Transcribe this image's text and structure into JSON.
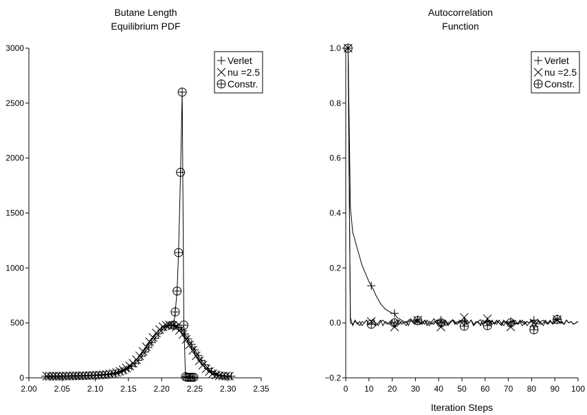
{
  "chart_data": [
    {
      "type": "line",
      "title": "Butane Length\nEquilibrium PDF",
      "xlabel": "",
      "ylabel": "",
      "xlim": [
        2.0,
        2.35
      ],
      "ylim": [
        0,
        3000
      ],
      "xticks": [
        "2.00",
        "2.05",
        "2.10",
        "2.15",
        "2.20",
        "2.25",
        "2.30",
        "2.35"
      ],
      "yticks": [
        "0",
        "500",
        "1000",
        "1500",
        "2000",
        "2500",
        "3000"
      ],
      "legend_position": "top-right",
      "grid": false,
      "legend": [
        {
          "name": "Verlet",
          "marker": "plus"
        },
        {
          "name": "nu =2.5",
          "marker": "cross"
        },
        {
          "name": "Constr.",
          "marker": "circle-plus"
        }
      ],
      "series": [
        {
          "name": "Verlet",
          "marker": "plus",
          "x": [
            2.025,
            2.03,
            2.035,
            2.04,
            2.045,
            2.05,
            2.055,
            2.06,
            2.065,
            2.07,
            2.075,
            2.08,
            2.085,
            2.09,
            2.095,
            2.1,
            2.105,
            2.11,
            2.115,
            2.12,
            2.125,
            2.13,
            2.135,
            2.14,
            2.145,
            2.15,
            2.155,
            2.16,
            2.165,
            2.17,
            2.175,
            2.18,
            2.185,
            2.19,
            2.195,
            2.2,
            2.205,
            2.21,
            2.215,
            2.22,
            2.225,
            2.23,
            2.235,
            2.24,
            2.245,
            2.25,
            2.255,
            2.26,
            2.265,
            2.27,
            2.275,
            2.28,
            2.285,
            2.29,
            2.295,
            2.3,
            2.305
          ],
          "y": [
            15,
            15,
            15,
            15,
            15,
            15,
            16,
            16,
            17,
            17,
            18,
            18,
            19,
            20,
            21,
            22,
            23,
            25,
            27,
            30,
            34,
            40,
            48,
            58,
            70,
            85,
            105,
            130,
            160,
            195,
            235,
            275,
            320,
            360,
            400,
            435,
            460,
            475,
            480,
            475,
            460,
            435,
            400,
            355,
            305,
            255,
            205,
            160,
            120,
            85,
            60,
            40,
            28,
            20,
            16,
            15,
            15
          ]
        },
        {
          "name": "nu =2.5",
          "marker": "cross",
          "x": [
            2.027,
            2.032,
            2.037,
            2.042,
            2.047,
            2.052,
            2.057,
            2.062,
            2.067,
            2.072,
            2.077,
            2.082,
            2.087,
            2.092,
            2.097,
            2.102,
            2.107,
            2.112,
            2.117,
            2.122,
            2.127,
            2.132,
            2.137,
            2.142,
            2.147,
            2.152,
            2.157,
            2.162,
            2.167,
            2.172,
            2.177,
            2.182,
            2.187,
            2.192,
            2.197,
            2.202,
            2.207,
            2.212,
            2.217,
            2.222,
            2.227,
            2.232,
            2.237,
            2.242,
            2.247,
            2.252,
            2.257,
            2.262,
            2.267,
            2.272,
            2.277,
            2.282,
            2.287,
            2.292,
            2.297,
            2.302
          ],
          "y": [
            15,
            15,
            15,
            15,
            15,
            16,
            16,
            16,
            17,
            17,
            18,
            19,
            20,
            21,
            22,
            24,
            26,
            28,
            31,
            35,
            41,
            49,
            60,
            72,
            88,
            108,
            133,
            165,
            200,
            240,
            282,
            328,
            368,
            408,
            440,
            465,
            478,
            482,
            476,
            460,
            432,
            395,
            350,
            300,
            250,
            200,
            155,
            115,
            82,
            58,
            38,
            26,
            19,
            16,
            15,
            15
          ]
        },
        {
          "name": "Constr.",
          "marker": "circle-plus",
          "x": [
            2.218,
            2.2205,
            2.2233,
            2.2255,
            2.2285,
            2.231,
            2.2335,
            2.236,
            2.2385,
            2.241,
            2.2435,
            2.246,
            2.2485
          ],
          "y": [
            480,
            600,
            790,
            1140,
            1870,
            2600,
            480,
            10,
            5,
            5,
            5,
            5,
            5
          ]
        }
      ]
    },
    {
      "type": "line",
      "title": "Autocorrelation\nFunction",
      "xlabel": "Iteration Steps",
      "ylabel": "",
      "xlim": [
        0,
        100
      ],
      "ylim": [
        -0.2,
        1.0
      ],
      "xticks": [
        "0",
        "10",
        "20",
        "30",
        "40",
        "50",
        "60",
        "70",
        "80",
        "90",
        "100"
      ],
      "yticks": [
        "−0.2",
        "0.0",
        "0.2",
        "0.4",
        "0.6",
        "0.8",
        "1.0"
      ],
      "legend_position": "top-right",
      "grid": false,
      "legend": [
        {
          "name": "Verlet",
          "marker": "plus"
        },
        {
          "name": "nu =2.5",
          "marker": "cross"
        },
        {
          "name": "Constr.",
          "marker": "circle-plus"
        }
      ],
      "series": [
        {
          "name": "Verlet",
          "marker": "plus",
          "x": [
            1,
            2,
            3,
            4,
            5,
            6,
            7,
            8,
            9,
            10,
            11,
            12,
            13,
            14,
            15,
            16,
            17,
            18,
            19,
            20,
            21,
            22,
            23,
            24,
            25,
            26,
            27,
            28,
            29,
            30,
            31,
            32,
            33,
            34,
            35,
            36,
            37,
            38,
            39,
            40,
            41,
            42,
            43,
            44,
            45,
            46,
            47,
            48,
            49,
            50,
            51,
            52,
            53,
            54,
            55,
            56,
            57,
            58,
            59,
            60,
            61,
            62,
            63,
            64,
            65,
            66,
            67,
            68,
            69,
            70,
            71,
            72,
            73,
            74,
            75,
            76,
            77,
            78,
            79,
            80,
            81,
            82,
            83,
            84,
            85,
            86,
            87,
            88,
            89,
            90,
            91,
            92,
            93,
            94,
            95,
            96,
            97,
            98,
            99,
            100
          ],
          "y": [
            1.0,
            0.42,
            0.33,
            0.3,
            0.27,
            0.24,
            0.21,
            0.19,
            0.17,
            0.15,
            0.135,
            0.12,
            0.1,
            0.085,
            0.07,
            0.06,
            0.05,
            0.045,
            0.04,
            0.035,
            0.035,
            0.02,
            0.015,
            0.01,
            0.005,
            0.0,
            0.01,
            0.015,
            0.005,
            0.01,
            0.012,
            0.0,
            -0.005,
            0.01,
            0.0,
            -0.01,
            0.005,
            0.015,
            0.0,
            -0.005,
            0.01,
            0.0,
            0.005,
            -0.01,
            0.0,
            0.012,
            0.005,
            -0.005,
            0.01,
            0.005,
            0.008,
            -0.005,
            0.0,
            0.01,
            -0.01,
            0.0,
            0.005,
            0.012,
            -0.005,
            0.0,
            0.005,
            0.01,
            -0.005,
            0.0,
            0.01,
            0.0,
            -0.01,
            0.005,
            0.0,
            -0.005,
            0.005,
            0.01,
            0.0,
            -0.005,
            0.01,
            0.0,
            0.005,
            -0.01,
            0.0,
            0.005,
            0.01,
            0.0,
            -0.005,
            0.005,
            0.01,
            0.0,
            -0.005,
            0.005,
            0.0,
            0.01,
            0.015,
            0.0,
            0.005,
            -0.005,
            0.01,
            0.0,
            0.005,
            -0.005,
            0.0,
            0.005
          ]
        },
        {
          "name": "nu =2.5",
          "marker": "cross",
          "x": [
            1,
            2,
            3,
            4,
            5,
            6,
            7,
            8,
            9,
            10,
            11,
            12,
            13,
            14,
            15,
            16,
            17,
            18,
            19,
            20,
            21,
            22,
            23,
            24,
            25,
            26,
            27,
            28,
            29,
            30,
            31,
            32,
            33,
            34,
            35,
            36,
            37,
            38,
            39,
            40,
            41,
            42,
            43,
            44,
            45,
            46,
            47,
            48,
            49,
            50,
            51,
            52,
            53,
            54,
            55,
            56,
            57,
            58,
            59,
            60,
            61,
            62,
            63,
            64,
            65,
            66,
            67,
            68,
            69,
            70,
            71,
            72,
            73,
            74,
            75,
            76,
            77,
            78,
            79,
            80,
            81,
            82,
            83,
            84,
            85,
            86,
            87,
            88,
            89,
            90,
            91,
            92,
            93,
            94,
            95,
            96,
            97,
            98,
            99,
            100
          ],
          "y": [
            1.0,
            0.02,
            -0.01,
            0.01,
            -0.005,
            0.005,
            -0.01,
            0.0,
            0.01,
            -0.005,
            0.005,
            0.015,
            -0.01,
            0.0,
            0.01,
            -0.01,
            0.005,
            0.0,
            -0.005,
            0.01,
            -0.015,
            0.0,
            0.01,
            -0.005,
            0.0,
            0.005,
            -0.01,
            0.01,
            0.0,
            0.005,
            0.01,
            -0.005,
            0.0,
            0.01,
            -0.01,
            0.005,
            0.0,
            -0.005,
            0.01,
            0.0,
            -0.015,
            0.005,
            0.01,
            -0.005,
            0.0,
            0.01,
            -0.005,
            0.005,
            0.0,
            0.01,
            0.02,
            -0.005,
            0.0,
            0.01,
            -0.01,
            0.005,
            0.0,
            -0.005,
            0.01,
            0.0,
            0.015,
            -0.01,
            0.005,
            0.0,
            -0.005,
            0.01,
            0.0,
            -0.01,
            0.005,
            0.0,
            -0.015,
            0.005,
            0.01,
            -0.005,
            0.0,
            0.01,
            -0.005,
            0.005,
            0.0,
            0.01,
            0.0,
            -0.005,
            0.01,
            0.0,
            -0.01,
            0.005,
            0.0,
            0.01,
            -0.005,
            0.0,
            0.012,
            0.005,
            0.0,
            -0.005,
            0.01,
            0.0,
            0.005,
            -0.005,
            0.0,
            0.005
          ]
        },
        {
          "name": "Constr.",
          "marker": "circle-plus",
          "x": [
            1,
            2,
            3,
            4,
            5,
            6,
            7,
            8,
            9,
            10,
            11,
            12,
            13,
            14,
            15,
            16,
            17,
            18,
            19,
            20,
            21,
            22,
            23,
            24,
            25,
            26,
            27,
            28,
            29,
            30,
            31,
            32,
            33,
            34,
            35,
            36,
            37,
            38,
            39,
            40,
            41,
            42,
            43,
            44,
            45,
            46,
            47,
            48,
            49,
            50,
            51,
            52,
            53,
            54,
            55,
            56,
            57,
            58,
            59,
            60,
            61,
            62,
            63,
            64,
            65,
            66,
            67,
            68,
            69,
            70,
            71,
            72,
            73,
            74,
            75,
            76,
            77,
            78,
            79,
            80,
            81,
            82,
            83,
            84,
            85,
            86,
            87,
            88,
            89,
            90,
            91,
            92,
            93,
            94,
            95,
            96,
            97,
            98,
            99,
            100
          ],
          "y": [
            1.0,
            0.0,
            -0.005,
            0.005,
            0.0,
            -0.01,
            0.005,
            0.0,
            0.01,
            -0.005,
            -0.005,
            0.005,
            0.0,
            -0.01,
            0.005,
            0.01,
            0.0,
            -0.005,
            0.005,
            0.0,
            0.0,
            0.01,
            -0.005,
            0.005,
            0.0,
            -0.01,
            0.005,
            0.01,
            0.0,
            -0.005,
            0.008,
            0.0,
            0.005,
            -0.005,
            0.01,
            0.0,
            -0.005,
            0.005,
            0.0,
            0.01,
            0.0,
            0.005,
            -0.01,
            0.0,
            0.005,
            0.01,
            0.0,
            -0.005,
            0.005,
            0.0,
            -0.012,
            0.005,
            0.0,
            0.01,
            -0.005,
            0.0,
            0.005,
            -0.01,
            0.0,
            0.005,
            -0.01,
            0.0,
            0.01,
            -0.005,
            0.005,
            0.0,
            -0.005,
            0.01,
            0.0,
            -0.005,
            0.0,
            0.01,
            -0.005,
            0.0,
            0.005,
            -0.01,
            0.0,
            0.005,
            0.0,
            0.01,
            -0.025,
            0.0,
            0.005,
            -0.005,
            0.0,
            0.01,
            -0.005,
            0.005,
            0.0,
            0.01,
            0.012,
            0.0,
            0.005,
            -0.005,
            0.01,
            0.0,
            0.005,
            -0.005,
            0.0,
            0.005
          ]
        }
      ]
    }
  ]
}
